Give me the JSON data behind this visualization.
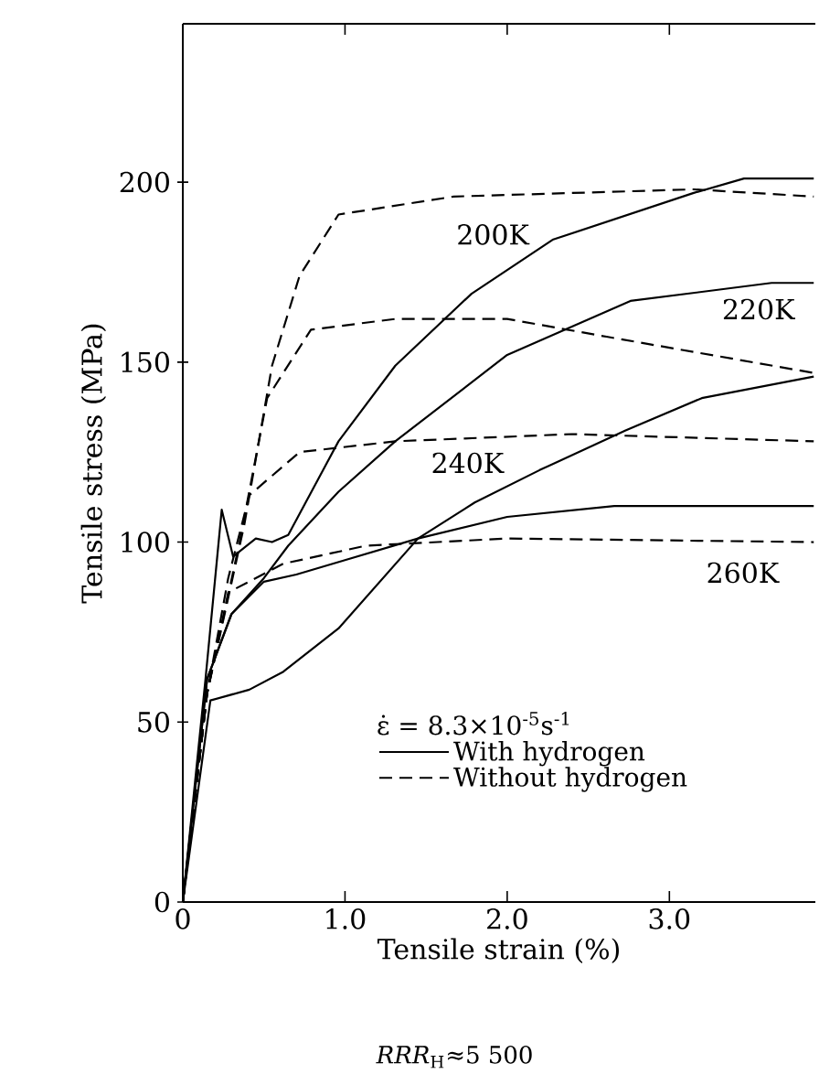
{
  "chart_data": {
    "type": "line",
    "xlabel": "Tensile strain (%)",
    "ylabel": "Tensile stress (MPa)",
    "legend_title": "ε̇ = 8.3×10$^{-5}$s$^{-1}$",
    "xlim": [
      0,
      3.9
    ],
    "ylim": [
      0,
      244
    ],
    "xticks": [
      0,
      {
        "value": 1,
        "label": "1.0"
      },
      {
        "value": 2,
        "label": "2.0"
      },
      {
        "value": 3,
        "label": "3.0"
      }
    ],
    "yticks": [
      0,
      50,
      100,
      150,
      200
    ],
    "legend": "bottom",
    "grid": false,
    "marker": "none",
    "series": [
      {
        "name": "With hydrogen",
        "color": "#000000",
        "line_style": "solid",
        "x": [
          0,
          0.14,
          0.24,
          0.31,
          0.45,
          0.55,
          0.65,
          0.96,
          1.31,
          1.78,
          2.28,
          3.15,
          3.46,
          3.89
        ],
        "values": [
          0,
          62,
          109,
          96,
          101,
          100,
          102,
          128,
          149,
          169,
          184,
          197,
          201,
          201
        ]
      },
      {
        "color": "#000000",
        "line_style": "solid",
        "x": [
          0,
          0.15,
          0.3,
          0.5,
          0.65,
          0.96,
          1.31,
          2.0,
          2.76,
          3.63,
          3.89
        ],
        "values": [
          0,
          62,
          80,
          90,
          99,
          114,
          128,
          152,
          167,
          172,
          172
        ]
      },
      {
        "color": "#000000",
        "line_style": "solid",
        "x": [
          0,
          0.17,
          0.41,
          0.62,
          0.96,
          1.45,
          1.8,
          2.2,
          2.73,
          3.2,
          3.89
        ],
        "values": [
          0,
          56,
          59,
          64,
          76,
          101,
          111,
          120,
          131,
          140,
          146
        ]
      },
      {
        "color": "#000000",
        "line_style": "solid",
        "x": [
          0,
          0.15,
          0.3,
          0.5,
          0.7,
          1.0,
          1.45,
          2.0,
          2.66,
          3.89
        ],
        "values": [
          0,
          62,
          80,
          89,
          91,
          95,
          101,
          107,
          110,
          110
        ]
      },
      {
        "name": "Without hydrogen",
        "color": "#000000",
        "line_style": "dashed",
        "x": [
          0,
          0.15,
          0.38,
          0.55,
          0.72,
          0.96,
          1.67,
          3.15,
          3.89
        ],
        "values": [
          0,
          58,
          105,
          149,
          174,
          191,
          196,
          198,
          196
        ]
      },
      {
        "color": "#000000",
        "line_style": "dashed",
        "x": [
          0,
          0.15,
          0.35,
          0.52,
          0.79,
          1.31,
          2.0,
          2.62,
          3.89
        ],
        "values": [
          0,
          58,
          100,
          140,
          159,
          162,
          162,
          157,
          147
        ]
      },
      {
        "color": "#000000",
        "line_style": "dashed",
        "x": [
          0,
          0.15,
          0.28,
          0.41,
          0.72,
          1.31,
          2.4,
          3.89
        ],
        "values": [
          0,
          58,
          90,
          113,
          125,
          128,
          130,
          128
        ]
      },
      {
        "color": "#000000",
        "line_style": "dashed",
        "x": [
          0,
          0.15,
          0.28,
          0.62,
          1.13,
          2.0,
          3.89
        ],
        "values": [
          0,
          58,
          86,
          94,
          99,
          101,
          100
        ]
      }
    ],
    "annotations": [
      "200K",
      "220K",
      "240K",
      "260K",
      "*RRR*$_{H}$≈5 500"
    ]
  }
}
